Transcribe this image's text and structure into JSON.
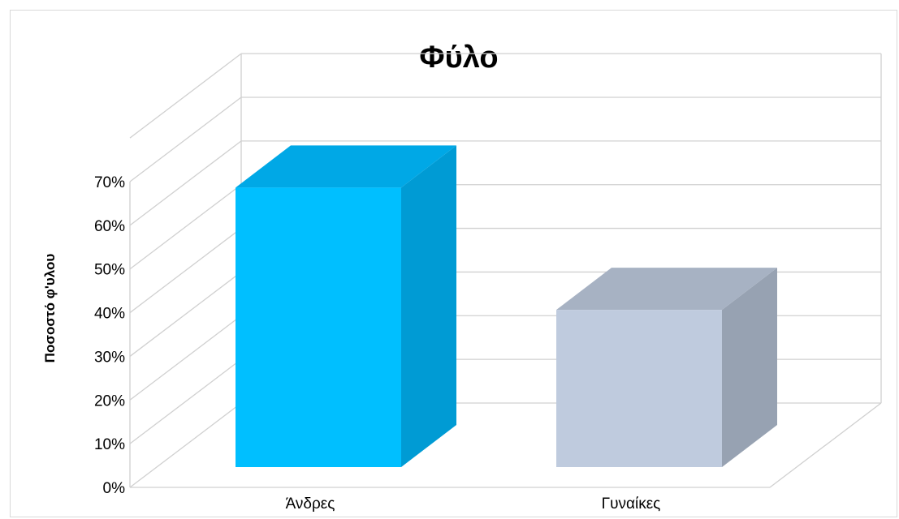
{
  "chart_data": {
    "type": "bar",
    "title": "Φύλο",
    "ylabel": "Ποσοστό φ'υλου",
    "xlabel": "",
    "categories": [
      "Άνδρες",
      "Γυναίκες"
    ],
    "values": [
      64,
      36
    ],
    "ylim": [
      0,
      70
    ],
    "yticks": [
      "0%",
      "10%",
      "20%",
      "30%",
      "40%",
      "50%",
      "60%",
      "70%"
    ],
    "grid": true,
    "legend": "none",
    "colors": {
      "bar1_front": "#00bfff",
      "bar1_top": "#00a8e6",
      "bar1_side": "#009bd4",
      "bar2_front": "#bfcbde",
      "bar2_top": "#a7b2c3",
      "bar2_side": "#97a2b2",
      "grid": "#d0d0d0"
    }
  }
}
